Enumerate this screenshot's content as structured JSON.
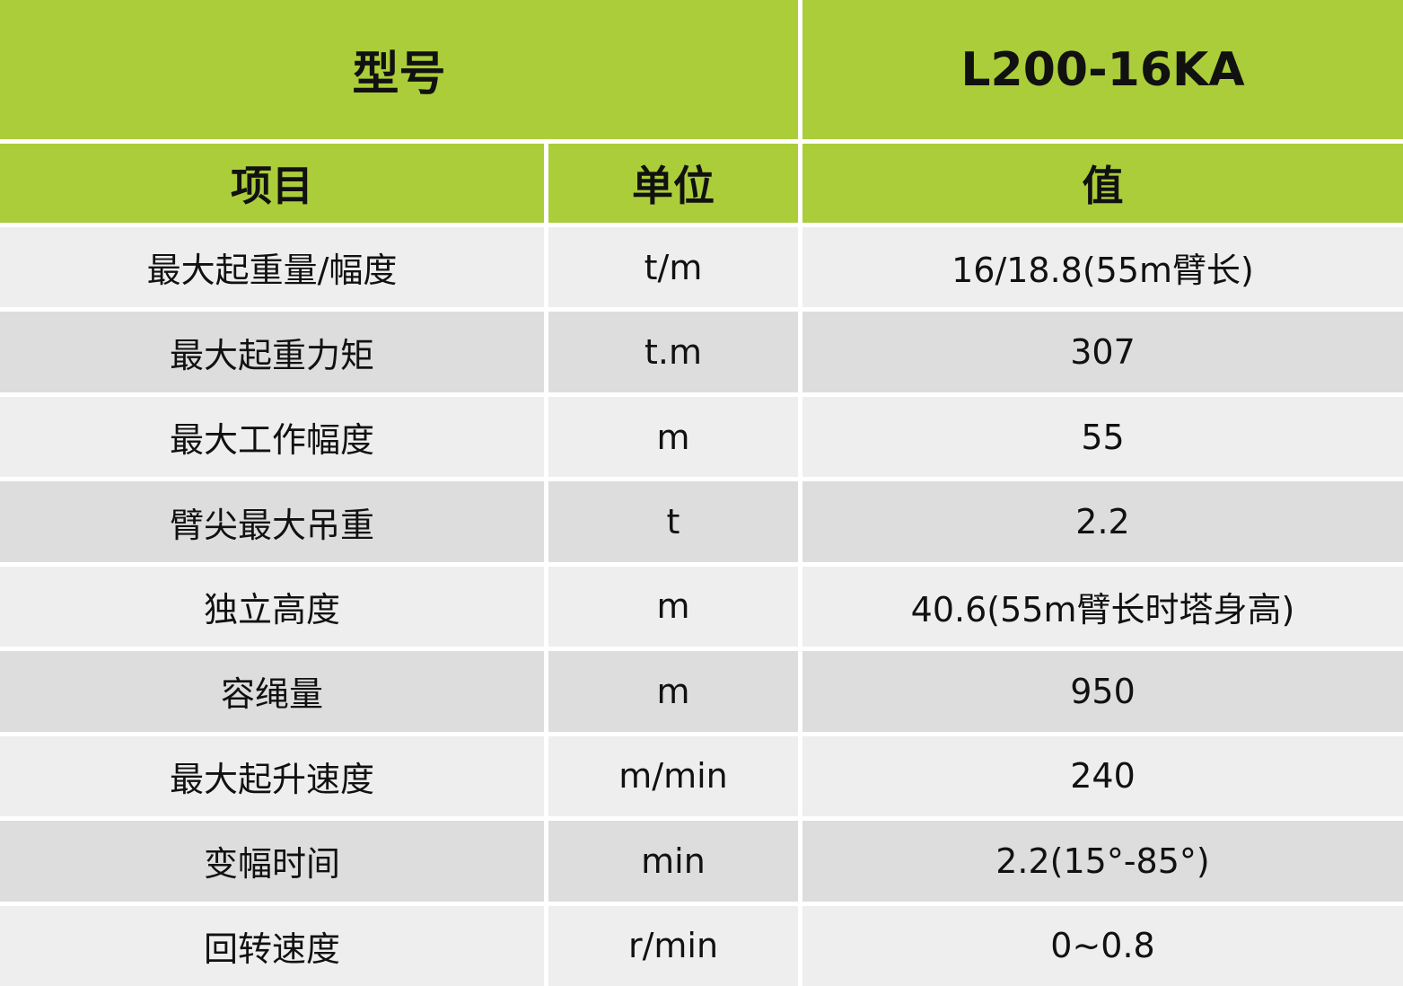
{
  "title": {
    "label": "型号",
    "model": "L200-16KA"
  },
  "headers": [
    "项目",
    "单位",
    "值"
  ],
  "colors": {
    "header_green": "#abcd3a",
    "row_light": "#eeeeee",
    "row_dark": "#dddddd"
  },
  "rows": [
    [
      "最大起重量/幅度",
      "t/m",
      "16/18.8(55m臂长)"
    ],
    [
      "最大起重力矩",
      "t.m",
      "307"
    ],
    [
      "最大工作幅度",
      "m",
      "55"
    ],
    [
      "臂尖最大吊重",
      "t",
      "2.2"
    ],
    [
      "独立高度",
      "m",
      "40.6(55m臂长时塔身高)"
    ],
    [
      "容绳量",
      "m",
      "950"
    ],
    [
      "最大起升速度",
      "m/min",
      "240"
    ],
    [
      "变幅时间",
      "min",
      "2.2(15°-85°)"
    ],
    [
      "回转速度",
      "r/min",
      "0~0.8"
    ]
  ]
}
